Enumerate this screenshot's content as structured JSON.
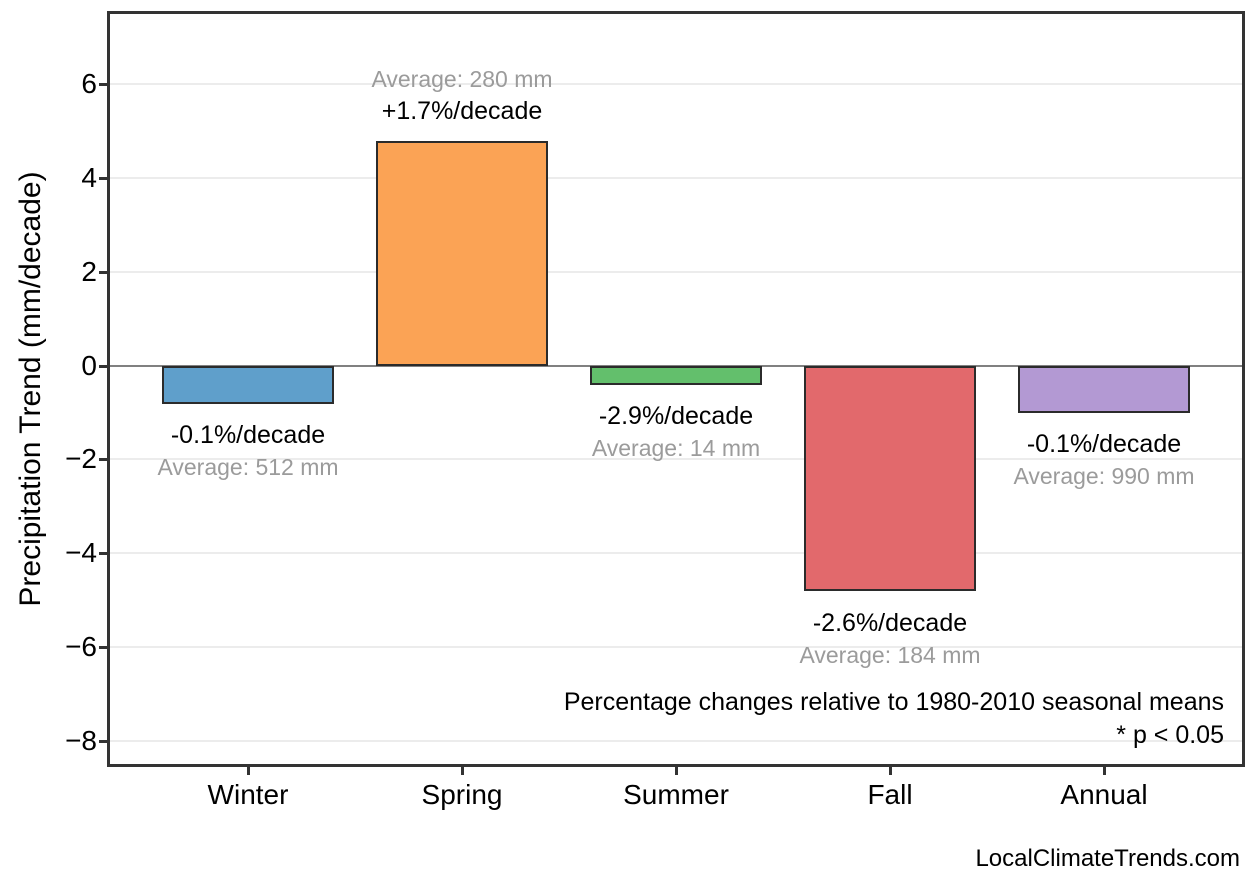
{
  "chart_data": {
    "type": "bar",
    "title": "",
    "categories": [
      "Winter",
      "Spring",
      "Summer",
      "Fall",
      "Annual"
    ],
    "values": [
      -0.8,
      4.8,
      -0.4,
      -4.8,
      -1.0
    ],
    "bar_colors": [
      "#5f9fcb",
      "#fba355",
      "#63bf6c",
      "#e2696c",
      "#b399d3"
    ],
    "bar_labels": [
      {
        "pct": "-0.1%/decade",
        "avg": "Average: 512 mm"
      },
      {
        "pct": "+1.7%/decade",
        "avg": "Average: 280 mm"
      },
      {
        "pct": "-2.9%/decade",
        "avg": "Average: 14 mm"
      },
      {
        "pct": "-2.6%/decade",
        "avg": "Average: 184 mm"
      },
      {
        "pct": "-0.1%/decade",
        "avg": "Average: 990 mm"
      }
    ],
    "xlabel": "",
    "ylabel": "Precipitation Trend (mm/decade)",
    "ylim": [
      -8.5,
      7.5
    ],
    "yticks": [
      -8,
      -6,
      -4,
      -2,
      0,
      2,
      4,
      6
    ],
    "grid": "horizontal",
    "zero_line": true,
    "legend": "none",
    "annotations": [
      "Percentage changes relative to 1980-2010 seasonal means",
      "* p < 0.05"
    ],
    "watermark": "LocalClimateTrends.com"
  },
  "colors": {
    "background": "#ffffff",
    "axis_frame": "#333333",
    "gridline": "#ececec",
    "zero_line": "#808080",
    "bar_edge": "#2b2b2b",
    "text_primary": "#000000",
    "text_secondary": "#9b9b9b"
  }
}
